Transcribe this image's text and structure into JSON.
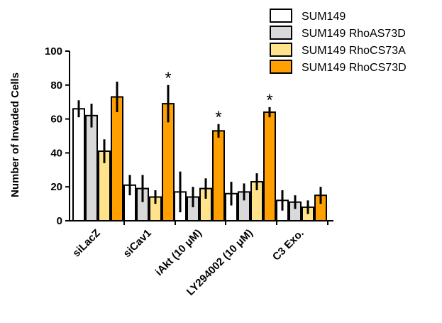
{
  "chart_data": {
    "type": "bar",
    "ylabel": "Number of Invaded Cells",
    "xlabel": "",
    "ylim": [
      0,
      100
    ],
    "yticks": [
      "0",
      "20",
      "40",
      "60",
      "80",
      "100"
    ],
    "categories": [
      "siLacZ",
      "siCav1",
      "iAkt (10 μM)",
      "LY294002 (10 μM)",
      "C3 Exo."
    ],
    "significance_marker": "*",
    "series": [
      {
        "name": "SUM149",
        "color": "#ffffff",
        "values": [
          66,
          21,
          17,
          16,
          12
        ],
        "errors": [
          5,
          6,
          12,
          7,
          6
        ],
        "significant": [
          false,
          false,
          false,
          false,
          false
        ]
      },
      {
        "name": "SUM149 RhoAS73D",
        "color": "#d9d9d9",
        "values": [
          62,
          19,
          14,
          17,
          11
        ],
        "errors": [
          7,
          8,
          6,
          5,
          4
        ],
        "significant": [
          false,
          false,
          false,
          false,
          false
        ]
      },
      {
        "name": "SUM149 RhoCS73A",
        "color": "#ffe38a",
        "values": [
          41,
          14,
          19,
          23,
          8
        ],
        "errors": [
          7,
          4,
          6,
          5,
          4
        ],
        "significant": [
          false,
          false,
          false,
          false,
          false
        ]
      },
      {
        "name": "SUM149 RhoCS73D",
        "color": "#ffa000",
        "values": [
          73,
          69,
          53,
          64,
          15
        ],
        "errors": [
          9,
          11,
          4,
          3,
          5
        ],
        "significant": [
          false,
          true,
          true,
          true,
          false
        ]
      }
    ],
    "legend_position": "top-right"
  }
}
